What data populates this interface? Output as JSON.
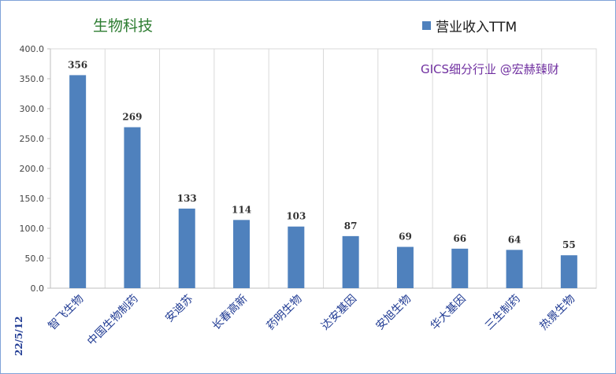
{
  "chart_data": {
    "type": "bar",
    "title": "生物科技",
    "legend": "营业收入TTM",
    "annotation": "GICS细分行业 @宏赫臻财",
    "date_label": "22/5/12",
    "categories": [
      "智飞生物",
      "中国生物制药",
      "安迪苏",
      "长春高新",
      "药明生物",
      "达安基因",
      "安旭生物",
      "华大基因",
      "三生制药",
      "热景生物"
    ],
    "series": [
      {
        "name": "营业收入TTM",
        "values": [
          356,
          269,
          133,
          114,
          103,
          87,
          69,
          66,
          64,
          55
        ]
      }
    ],
    "data_labels": [
      "356",
      "269",
      "133",
      "114",
      "103",
      "87",
      "69",
      "66",
      "64",
      "55"
    ],
    "y_ticks": [
      "0.0",
      "50.0",
      "100.0",
      "150.0",
      "200.0",
      "250.0",
      "300.0",
      "350.0",
      "400.0"
    ],
    "ylim": [
      0,
      400
    ],
    "grid": "vertical",
    "legend_position": "top-right",
    "colors": {
      "bar": "#4f81bd",
      "title": "#2e7d32",
      "annotation": "#7030a0",
      "category": "#1f3a93"
    }
  }
}
